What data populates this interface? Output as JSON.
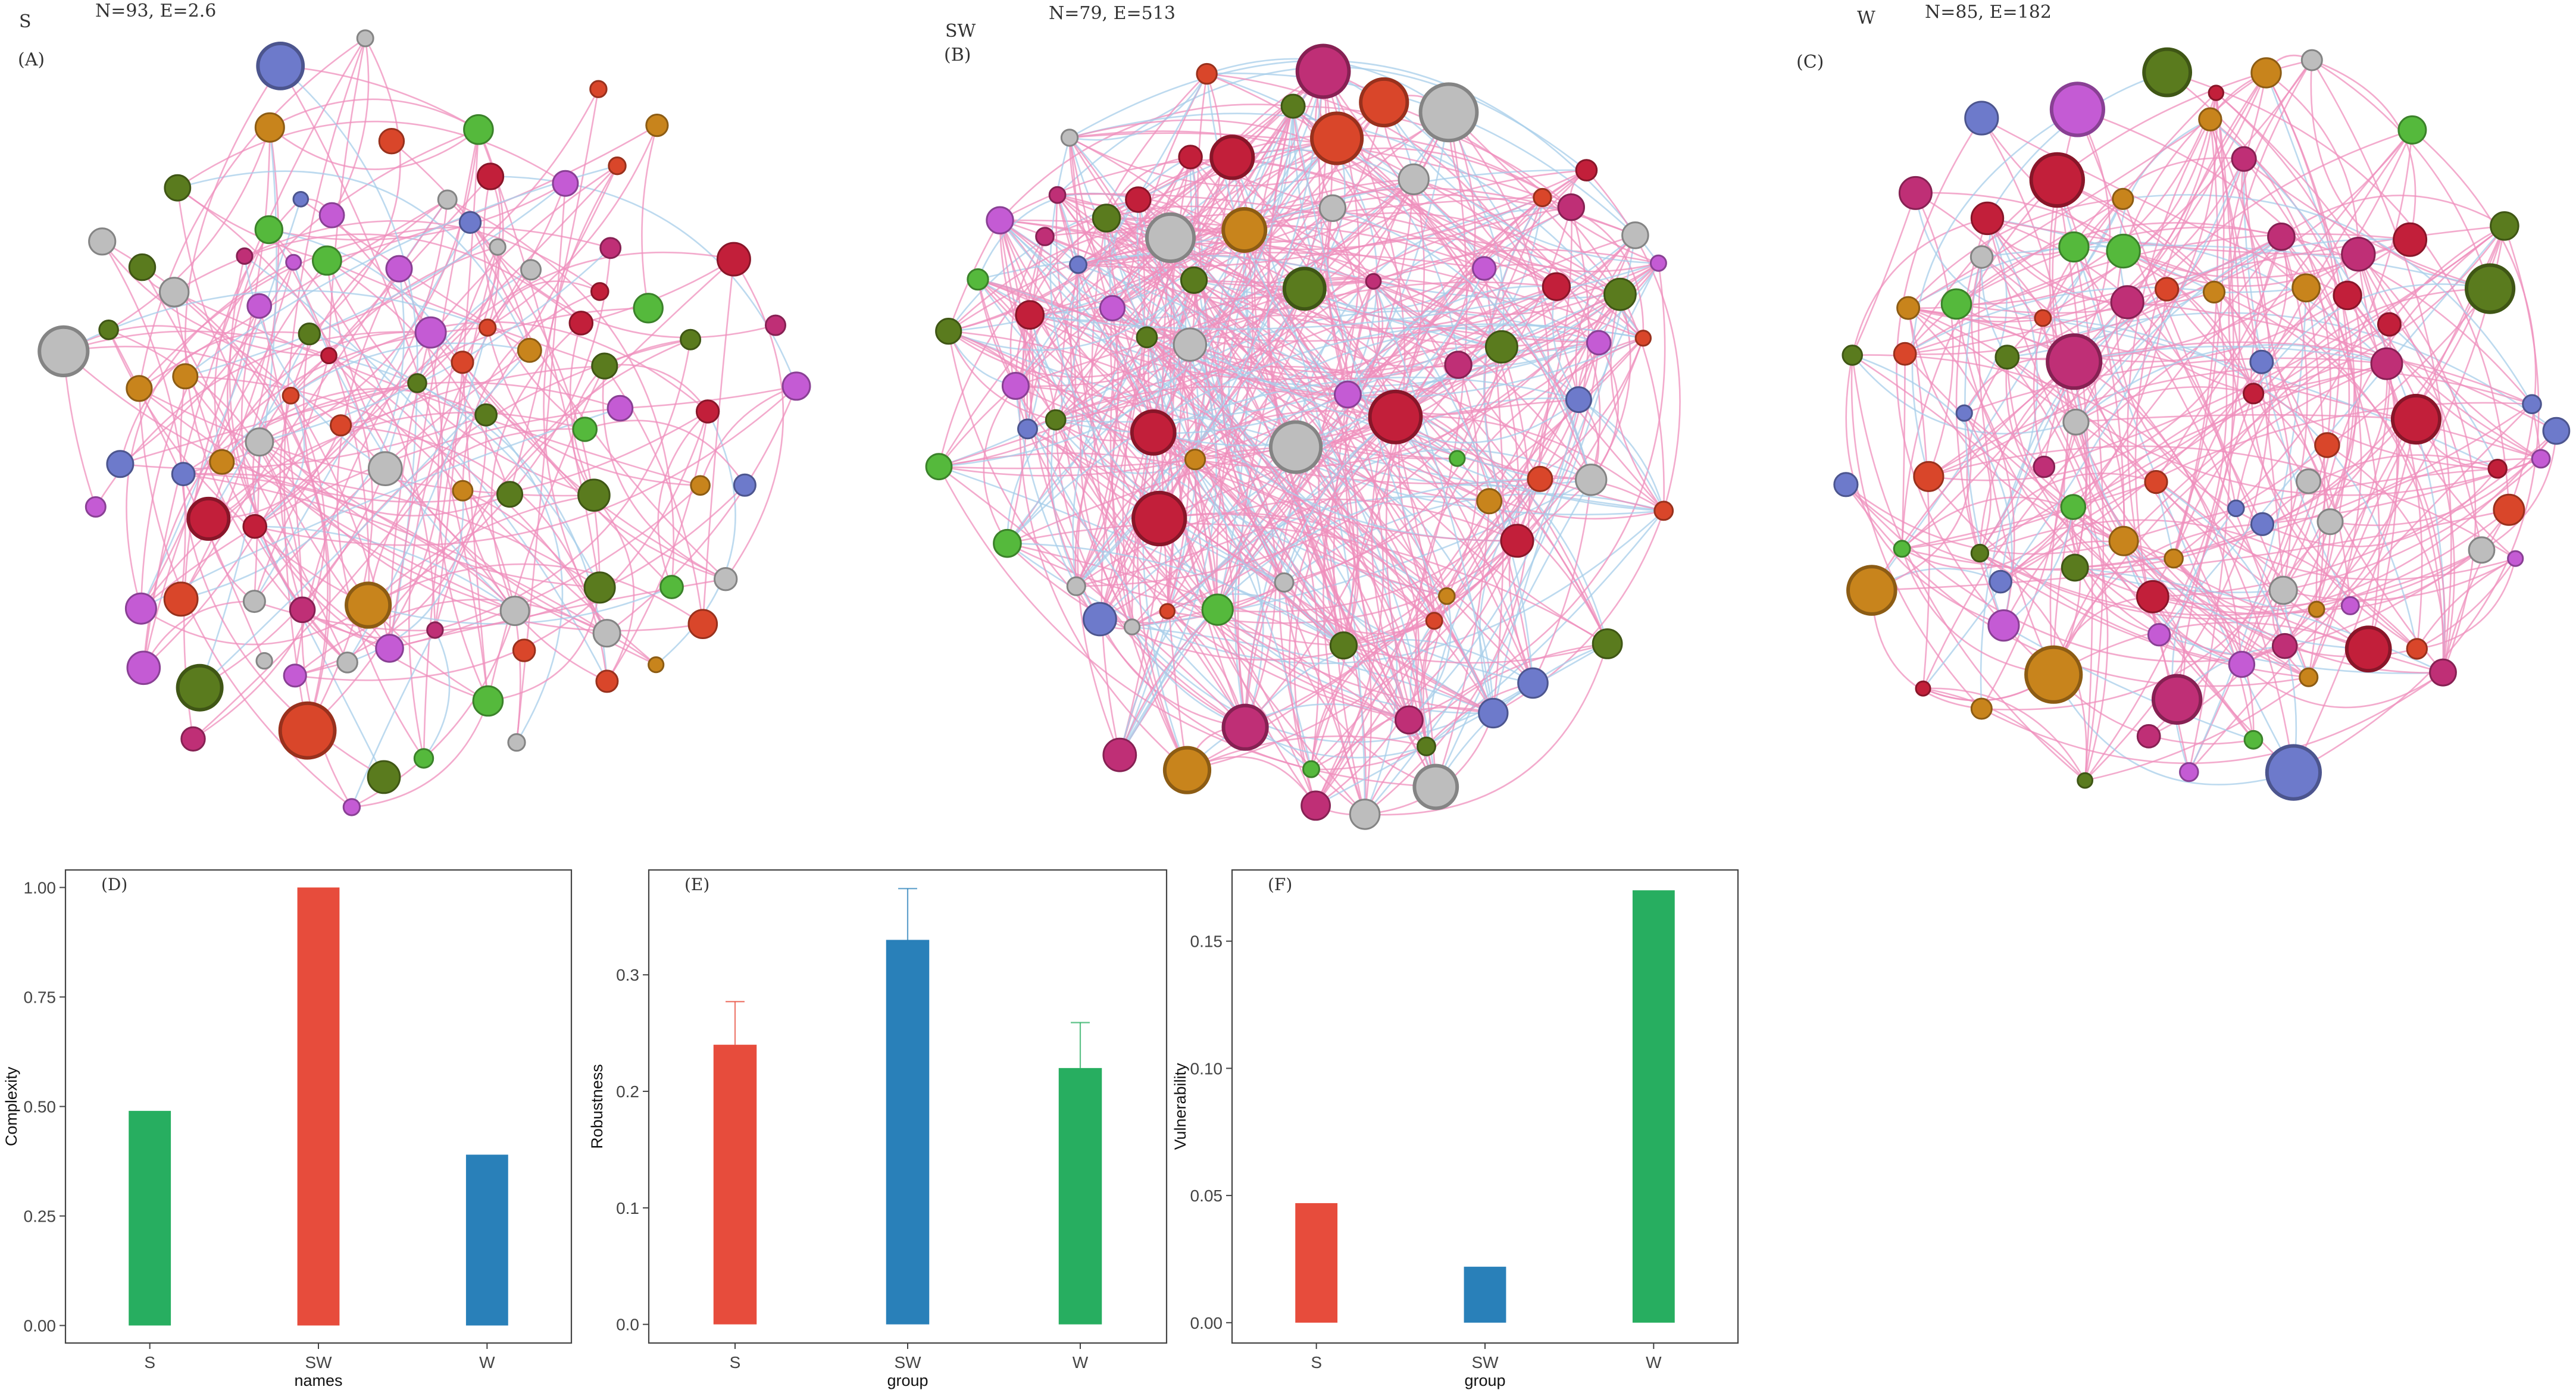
{
  "networks": [
    {
      "group_label": "S",
      "stats": "N=93, E=2.6",
      "panel_tag": "(A)"
    },
    {
      "group_label": "SW",
      "stats": "N=79, E=513",
      "panel_tag": "(B)"
    },
    {
      "group_label": "W",
      "stats": "N=85, E=182",
      "panel_tag": "(C)"
    }
  ],
  "node_colors": [
    "#c21f3a",
    "#d9462a",
    "#c8841c",
    "#55b93c",
    "#6d7acb",
    "#c45bd4",
    "#bf2f76",
    "#5a7b1e",
    "#bdbdbd"
  ],
  "edge_colors": {
    "positive": "#ef8fbc",
    "negative": "#a7cde9"
  },
  "chart_data": [
    {
      "type": "bar",
      "panel_tag": "(D)",
      "categories": [
        "S",
        "SW",
        "W"
      ],
      "values": [
        0.49,
        1.0,
        0.39
      ],
      "colors": [
        "#27ae60",
        "#e74c3c",
        "#2980b9"
      ],
      "xlabel": "names",
      "ylabel": "Complexity",
      "ylim": [
        -0.04,
        1.04
      ],
      "ticks": [
        "0.00",
        "0.25",
        "0.50",
        "0.75",
        "1.00"
      ],
      "tick_values": [
        0,
        0.25,
        0.5,
        0.75,
        1.0
      ]
    },
    {
      "type": "bar",
      "panel_tag": "(E)",
      "categories": [
        "S",
        "SW",
        "W"
      ],
      "values": [
        0.24,
        0.33,
        0.22
      ],
      "errors": [
        0.037,
        0.044,
        0.039
      ],
      "colors": [
        "#e74c3c",
        "#2980b9",
        "#27ae60"
      ],
      "xlabel": "group",
      "ylabel": "Robustness",
      "ylim": [
        -0.016,
        0.39
      ],
      "ticks": [
        "0.0",
        "0.1",
        "0.2",
        "0.3"
      ],
      "tick_values": [
        0,
        0.1,
        0.2,
        0.3
      ]
    },
    {
      "type": "bar",
      "panel_tag": "(F)",
      "categories": [
        "S",
        "SW",
        "W"
      ],
      "values": [
        0.047,
        0.022,
        0.17
      ],
      "colors": [
        "#e74c3c",
        "#2980b9",
        "#27ae60"
      ],
      "xlabel": "group",
      "ylabel": "Vulnerability",
      "ylim": [
        -0.008,
        0.178
      ],
      "ticks": [
        "0.00",
        "0.05",
        "0.10",
        "0.15"
      ],
      "tick_values": [
        0,
        0.05,
        0.1,
        0.15
      ]
    }
  ]
}
